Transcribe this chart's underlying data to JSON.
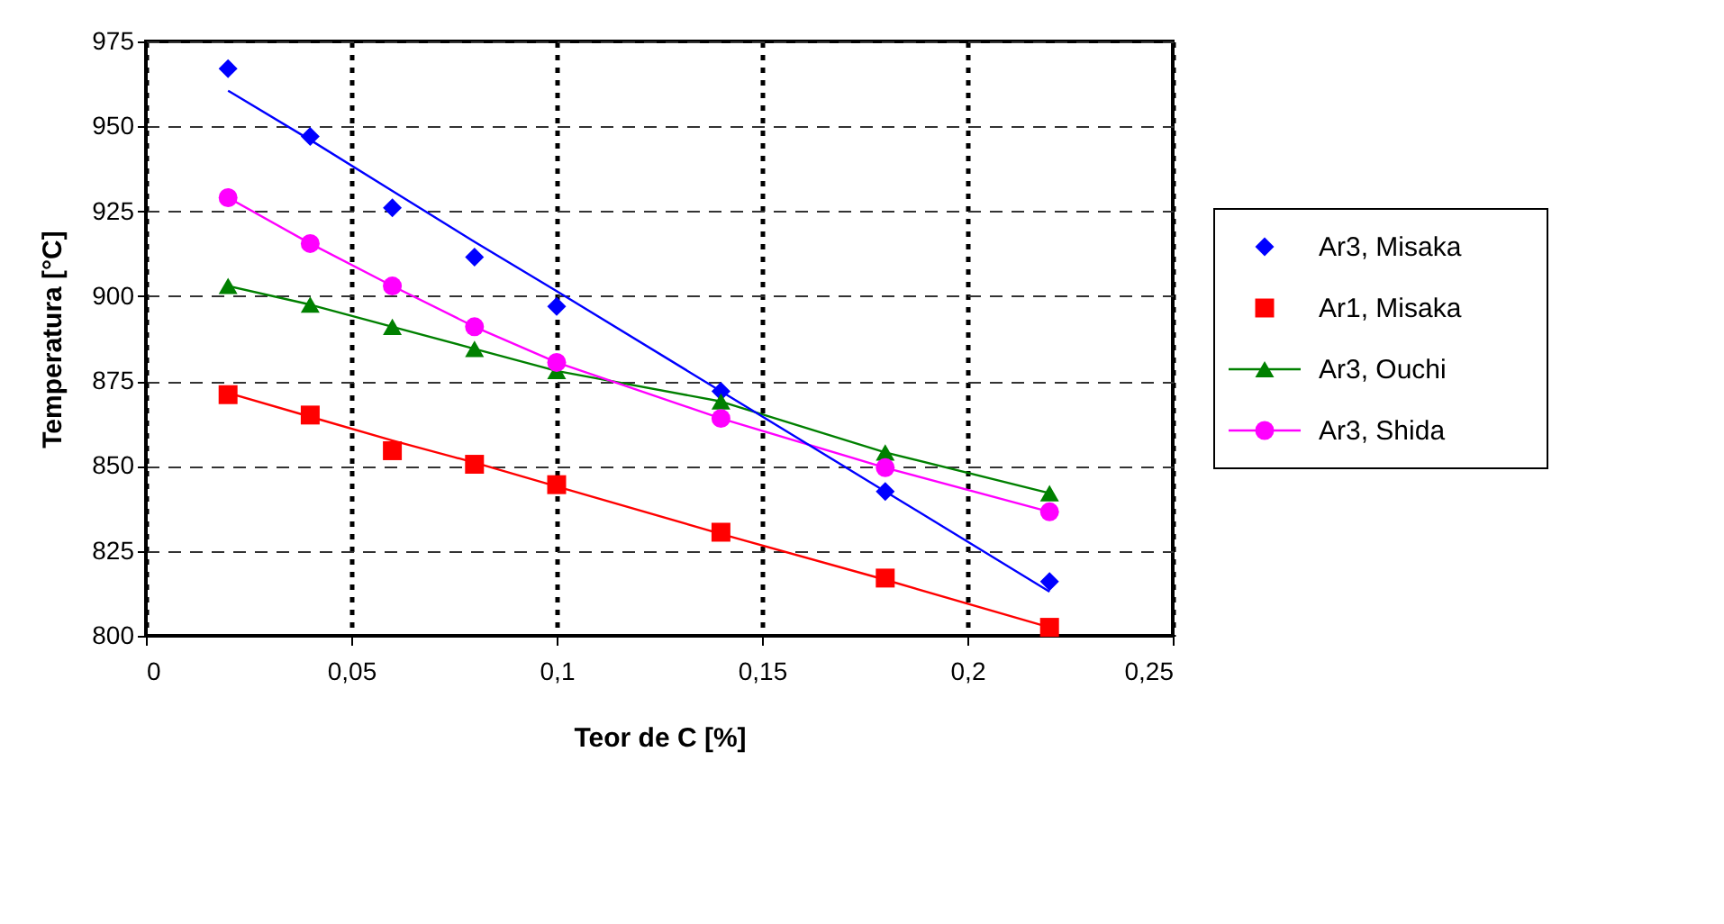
{
  "chart_data": {
    "type": "line",
    "xlabel": "Teor de C [%]",
    "ylabel": "Temperatura [°C]",
    "xlim": [
      0,
      0.25
    ],
    "xticks": [
      0,
      {
        "value": 0.05,
        "label": "0,05"
      },
      {
        "value": 0.1,
        "label": "0,1"
      },
      {
        "value": 0.15,
        "label": "0,15"
      },
      {
        "value": 0.2,
        "label": "0,2"
      },
      {
        "value": 0.25,
        "label": "0,25"
      }
    ],
    "ylim": [
      800,
      975
    ],
    "yticks": [
      800,
      825,
      850,
      875,
      900,
      925,
      950,
      975
    ],
    "grid": true,
    "legend": "right",
    "x": [
      0.02,
      0.04,
      0.06,
      0.08,
      0.1,
      0.14,
      0.18,
      0.22
    ],
    "series": [
      {
        "name": "Ar3, Misaka",
        "type": "scatter",
        "marker": "diamond",
        "color": "#0000ff",
        "values": [
          967,
          947,
          926,
          911.5,
          897,
          872,
          842.5,
          816
        ]
      },
      {
        "name": "Ar1, Misaka",
        "type": "scatter",
        "marker": "square",
        "color": "#ff0000",
        "values": [
          871,
          865,
          854.5,
          850.5,
          844.5,
          830.5,
          817,
          802.5
        ]
      },
      {
        "name": "Ar3, Ouchi",
        "type": "line",
        "marker": "triangle",
        "color": "#008000",
        "values": [
          903,
          897.5,
          891,
          884.5,
          878,
          869,
          854,
          842
        ]
      },
      {
        "name": "Ar3, Shida",
        "type": "line",
        "marker": "circle",
        "color": "#ff00ff",
        "values": [
          929,
          915.5,
          903,
          891,
          880.5,
          864,
          849.5,
          836.5
        ]
      },
      {
        "marker": "none",
        "color": "#0000ff",
        "values": [
          960.5,
          946,
          931,
          916,
          901.5,
          872,
          842.5,
          813
        ]
      },
      {
        "marker": "none",
        "color": "#ff0000",
        "values": [
          871.5,
          864.5,
          857.5,
          851,
          844,
          830,
          816.5,
          802.5
        ]
      }
    ]
  }
}
